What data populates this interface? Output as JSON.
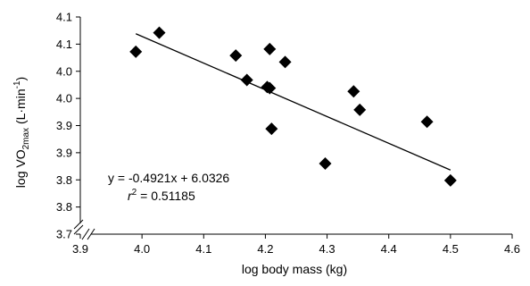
{
  "chart_data": {
    "type": "scatter",
    "xlabel": "log body mass (kg)",
    "ylabel": {
      "prefix": "log VO",
      "sub": "2max",
      "unit_open": " (L·min",
      "sup": "-1",
      "unit_close": ")"
    },
    "xlim": [
      3.9,
      4.6
    ],
    "ylim": [
      3.7,
      4.1
    ],
    "x_ticks": [
      3.9,
      4.0,
      4.1,
      4.2,
      4.3,
      4.4,
      4.5,
      4.6
    ],
    "x_tick_labels": [
      "3.9",
      "4.0",
      "4.1",
      "4.2",
      "4.3",
      "4.4",
      "4.5",
      "4.6"
    ],
    "y_ticks": [
      3.7,
      3.75,
      3.8,
      3.85,
      3.9,
      3.95,
      4.0,
      4.05,
      4.1
    ],
    "y_tick_labels": [
      "3.7",
      "3.8",
      "3.8",
      "3.9",
      "3.9",
      "4.0",
      "4.0",
      "4.1",
      "4.1"
    ],
    "grid": false,
    "axis_break": true,
    "series": [
      {
        "marker": "diamond",
        "color": "#000000",
        "points": [
          {
            "x": 3.99,
            "y": 4.036
          },
          {
            "x": 4.028,
            "y": 4.071
          },
          {
            "x": 4.152,
            "y": 4.029
          },
          {
            "x": 4.17,
            "y": 3.984
          },
          {
            "x": 4.203,
            "y": 3.971
          },
          {
            "x": 4.207,
            "y": 4.041
          },
          {
            "x": 4.207,
            "y": 3.969
          },
          {
            "x": 4.21,
            "y": 3.894
          },
          {
            "x": 4.232,
            "y": 4.017
          },
          {
            "x": 4.297,
            "y": 3.83
          },
          {
            "x": 4.343,
            "y": 3.963
          },
          {
            "x": 4.353,
            "y": 3.929
          },
          {
            "x": 4.462,
            "y": 3.907
          },
          {
            "x": 4.5,
            "y": 3.799
          }
        ]
      }
    ],
    "trendline": {
      "slope": -0.4921,
      "intercept": 6.0326,
      "x_range": [
        3.99,
        4.5
      ],
      "color": "#000000"
    },
    "annotations": {
      "equation": "y = -0.4921x + 6.0326",
      "r2_var": "r",
      "r2_sup": "2",
      "r2_value": " = 0.51185"
    }
  }
}
